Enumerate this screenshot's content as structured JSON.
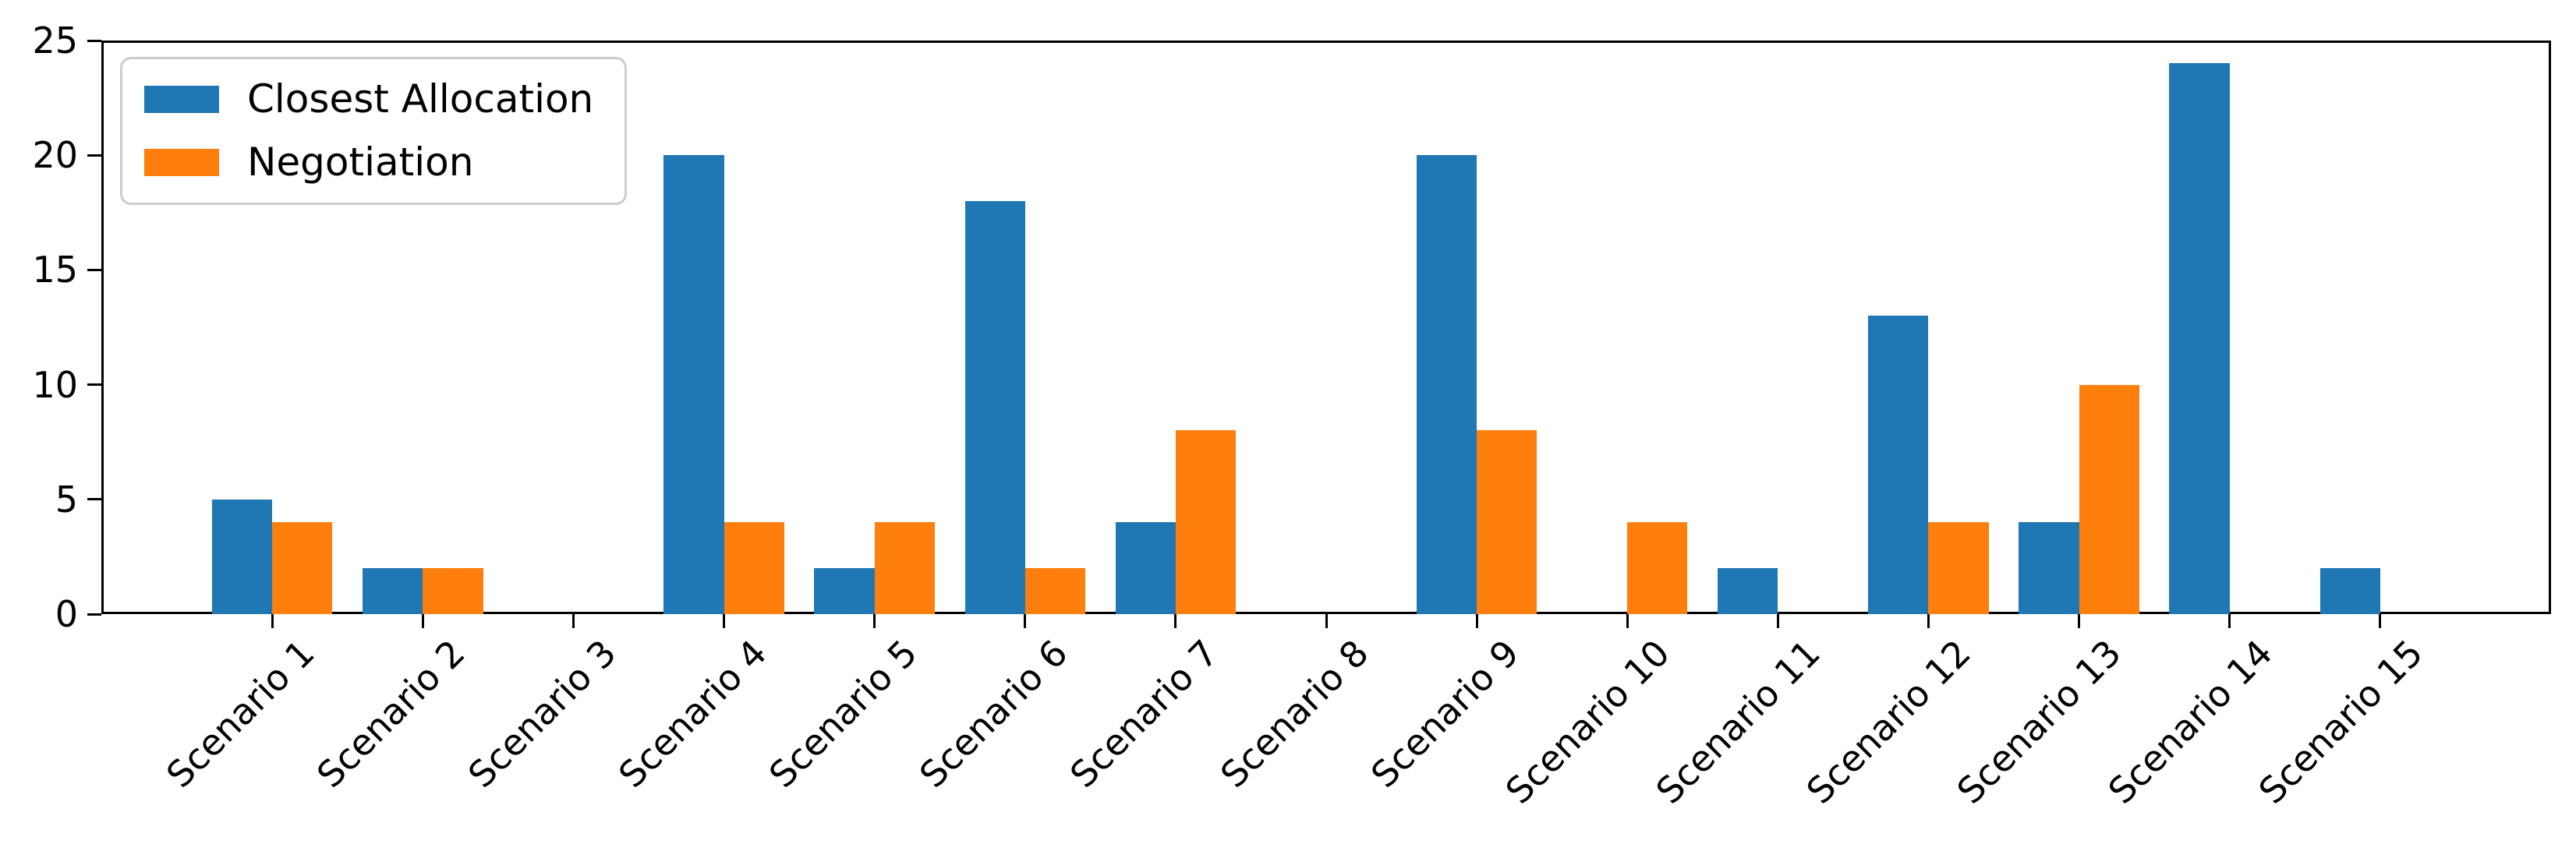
{
  "chart_data": {
    "type": "bar",
    "title": "",
    "xlabel": "",
    "ylabel": "",
    "categories": [
      "Scenario 1",
      "Scenario 2",
      "Scenario 3",
      "Scenario 4",
      "Scenario 5",
      "Scenario 6",
      "Scenario 7",
      "Scenario 8",
      "Scenario 9",
      "Scenario 10",
      "Scenario 11",
      "Scenario 12",
      "Scenario 13",
      "Scenario 14",
      "Scenario 15"
    ],
    "series": [
      {
        "name": "Closest Allocation",
        "color": "#1f77b4",
        "values": [
          5,
          2,
          0,
          20,
          2,
          18,
          4,
          0,
          20,
          0,
          2,
          13,
          4,
          24,
          2
        ]
      },
      {
        "name": "Negotiation",
        "color": "#ff7f0e",
        "values": [
          4,
          2,
          0,
          4,
          4,
          2,
          8,
          0,
          8,
          4,
          0,
          4,
          10,
          0,
          0
        ]
      }
    ],
    "ylim": [
      0,
      25
    ],
    "yticks": [
      0,
      5,
      10,
      15,
      20,
      25
    ],
    "x_tick_rotation": 45,
    "grid": false,
    "legend_position": "upper-left",
    "axis_color": "#000000",
    "background_color": "#ffffff"
  }
}
